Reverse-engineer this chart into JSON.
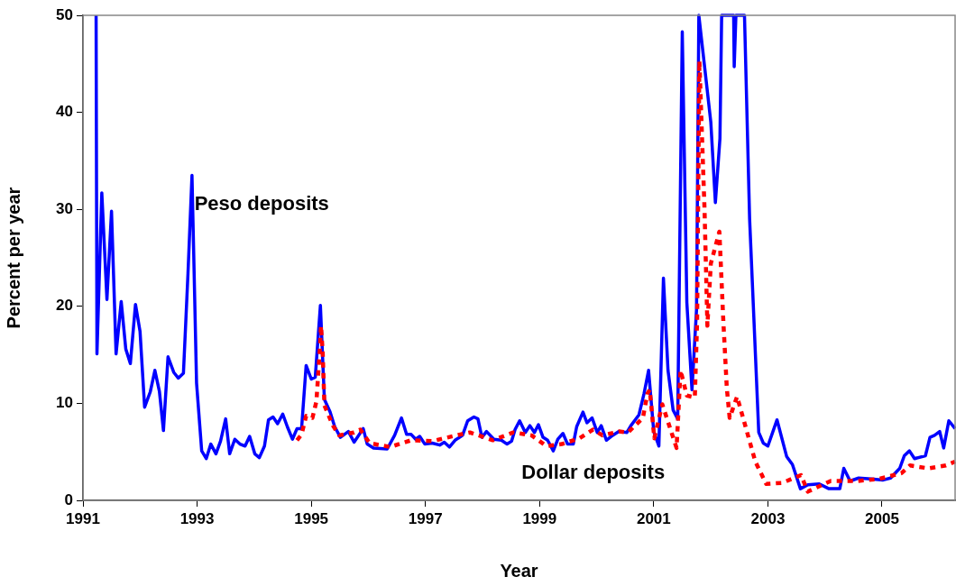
{
  "chart_data": {
    "type": "line",
    "xlabel": "Year",
    "ylabel": "Percent per year",
    "xlim": [
      1991,
      2006.28
    ],
    "xticks": [
      1991,
      1993,
      1995,
      1997,
      1999,
      2001,
      2003,
      2005
    ],
    "ylim": [
      0,
      50
    ],
    "yticks": [
      0,
      10,
      20,
      30,
      40,
      50
    ],
    "grid": false,
    "legend": false,
    "marker": "none",
    "series": [
      {
        "name": "Peso deposits",
        "color": "#0000ff",
        "line_style": "solid",
        "x": [
          1991.23,
          1991.245,
          1991.33,
          1991.42,
          1991.5,
          1991.58,
          1991.67,
          1991.75,
          1991.83,
          1991.92,
          1992,
          1992.08,
          1992.18,
          1992.26,
          1992.34,
          1992.41,
          1992.49,
          1992.59,
          1992.67,
          1992.76,
          1992.84,
          1992.91,
          1992.99,
          1993.08,
          1993.16,
          1993.24,
          1993.33,
          1993.41,
          1993.5,
          1993.57,
          1993.66,
          1993.75,
          1993.84,
          1993.92,
          1994.01,
          1994.09,
          1994.18,
          1994.25,
          1994.33,
          1994.41,
          1994.5,
          1994.58,
          1994.67,
          1994.75,
          1994.83,
          1994.91,
          1995,
          1995.07,
          1995.16,
          1995.23,
          1995.33,
          1995.41,
          1995.51,
          1995.65,
          1995.75,
          1995.91,
          1995.98,
          1996.09,
          1996.33,
          1996.46,
          1996.58,
          1996.67,
          1996.75,
          1996.83,
          1996.9,
          1996.99,
          1997.12,
          1997.25,
          1997.33,
          1997.42,
          1997.52,
          1997.65,
          1997.74,
          1997.85,
          1997.92,
          1997.99,
          1998.07,
          1998.2,
          1998.33,
          1998.43,
          1998.51,
          1998.57,
          1998.65,
          1998.75,
          1998.83,
          1998.91,
          1998.98,
          1999.06,
          1999.14,
          1999.24,
          1999.32,
          1999.41,
          1999.49,
          1999.59,
          1999.65,
          1999.76,
          1999.83,
          1999.92,
          2000.01,
          2000.08,
          2000.17,
          2000.28,
          2000.39,
          2000.53,
          2000.6,
          2000.74,
          2000.83,
          2000.91,
          2001,
          2001.09,
          2001.17,
          2001.25,
          2001.34,
          2001.42,
          2001.5,
          2001.58,
          2001.67,
          2001.75,
          2001.79,
          2002,
          2002.08,
          2002.16,
          2002.19,
          2002.4,
          2002.41,
          2002.44,
          2002.59,
          2002.68,
          2002.84,
          2002.92,
          2003,
          2003.16,
          2003.33,
          2003.43,
          2003.57,
          2003.7,
          2003.9,
          2004.07,
          2004.26,
          2004.33,
          2004.44,
          2004.59,
          2004.81,
          2005.02,
          2005.15,
          2005.31,
          2005.39,
          2005.48,
          2005.57,
          2005.76,
          2005.84,
          2005.92,
          2006.01,
          2006.08,
          2006.17,
          2006.28
        ],
        "values": [
          50,
          15.1,
          31.7,
          20.7,
          29.8,
          15.1,
          20.5,
          15.6,
          14.1,
          20.2,
          17.4,
          9.6,
          11.2,
          13.4,
          11.2,
          7.2,
          14.8,
          13.2,
          12.6,
          13.1,
          23.4,
          33.5,
          12.1,
          5.1,
          4.3,
          5.8,
          4.8,
          6.1,
          8.4,
          4.8,
          6.3,
          5.8,
          5.6,
          6.6,
          4.8,
          4.4,
          5.6,
          8.3,
          8.6,
          7.9,
          8.9,
          7.6,
          6.3,
          7.4,
          7.4,
          13.9,
          12.5,
          12.7,
          20.1,
          10.4,
          9.1,
          7.6,
          6.5,
          7.1,
          6,
          7.4,
          5.8,
          5.4,
          5.3,
          6.7,
          8.5,
          6.8,
          6.8,
          6.3,
          6.6,
          5.8,
          5.9,
          5.7,
          6,
          5.5,
          6.2,
          6.7,
          8.2,
          8.6,
          8.4,
          6.5,
          7.1,
          6.3,
          6.2,
          5.8,
          6.1,
          7.3,
          8.2,
          7,
          7.7,
          7,
          7.8,
          6.5,
          6.2,
          5.1,
          6.3,
          6.9,
          5.8,
          5.8,
          7.6,
          9.1,
          8,
          8.5,
          7,
          7.7,
          6.2,
          6.7,
          7.1,
          7,
          7.7,
          8.8,
          11,
          13.4,
          7.1,
          5.6,
          22.9,
          13.4,
          9.3,
          8.4,
          48.3,
          20.4,
          11.4,
          19.7,
          50,
          39,
          30.7,
          37.3,
          50,
          50,
          44.7,
          50,
          50,
          29,
          7,
          5.9,
          5.6,
          8.3,
          4.5,
          3.7,
          1.2,
          1.6,
          1.7,
          1.2,
          1.2,
          3.3,
          2,
          2.3,
          2.2,
          2.1,
          2.3,
          3.3,
          4.6,
          5.1,
          4.3,
          4.6,
          6.5,
          6.7,
          7.1,
          5.4,
          8.2,
          7.4
        ]
      },
      {
        "name": "Dollar deposits",
        "color": "#ff0000",
        "line_style": "dotted",
        "x": [
          1994.75,
          1994.83,
          1994.91,
          1995.02,
          1995.09,
          1995.15,
          1995.17,
          1995.2,
          1995.23,
          1995.38,
          1995.49,
          1995.75,
          1995.86,
          1996.02,
          1996.38,
          1996.75,
          1997.12,
          1997.54,
          1997.78,
          1998.18,
          1998.54,
          1998.86,
          1999.12,
          1999.39,
          1999.7,
          1999.94,
          2000.1,
          2000.39,
          2000.55,
          2000.81,
          2000.89,
          2000.93,
          2001.01,
          2001.15,
          2001.4,
          2001.47,
          2001.58,
          2001.72,
          2001.76,
          2001.8,
          2001.89,
          2001.94,
          2002,
          2002.15,
          2002.22,
          2002.28,
          2002.33,
          2002.46,
          2002.78,
          2002.97,
          2003.25,
          2003.58,
          2003.7,
          2004.1,
          2004.57,
          2004.94,
          2005.34,
          2005.49,
          2005.81,
          2006.12,
          2006.28
        ],
        "values": [
          6.2,
          6.8,
          8.7,
          8.5,
          10.2,
          15.6,
          18,
          15.3,
          9.8,
          7.7,
          6.7,
          7,
          7.3,
          5.9,
          5.5,
          6.2,
          6.1,
          6.7,
          7,
          6.2,
          7,
          6.7,
          5.6,
          5.8,
          6.4,
          7.3,
          6.7,
          7.1,
          7,
          8.5,
          11,
          11.4,
          6.4,
          9.9,
          5.4,
          13.4,
          10.8,
          10.6,
          18.4,
          45.3,
          30,
          18,
          24.4,
          27.7,
          18.4,
          11.6,
          8.5,
          10.7,
          4,
          1.7,
          1.8,
          2.6,
          0.9,
          2,
          2,
          2.2,
          2.8,
          3.6,
          3.3,
          3.6,
          4
        ]
      }
    ]
  }
}
